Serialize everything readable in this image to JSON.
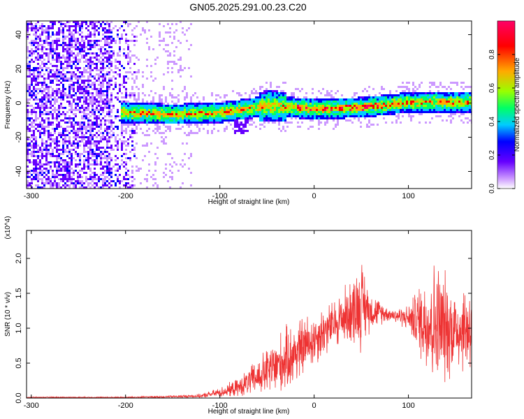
{
  "figure_title": "GN05.2025.291.00.23.C20",
  "chart_data": [
    {
      "type": "heatmap",
      "name": "spectrogram",
      "xlabel": "Height of straight line (km)",
      "ylabel": "Frequency (Hz)",
      "xlim": [
        -305,
        167
      ],
      "ylim": [
        -50,
        48
      ],
      "x_ticks": [
        -300,
        -200,
        -100,
        0,
        100
      ],
      "x_tick_labels": [
        "-300",
        "-200",
        "-100",
        "0",
        "100"
      ],
      "y_ticks": [
        40,
        20,
        0,
        -20,
        -40
      ],
      "y_tick_labels": [
        "40",
        "20",
        "0",
        "-20",
        "-40"
      ],
      "colorbar": {
        "label": "Normalized spectral amplitude",
        "range": [
          0,
          1
        ],
        "ticks": [
          0.0,
          0.2,
          0.4,
          0.6,
          0.8
        ],
        "tick_labels": [
          "0.0",
          "0.2",
          "0.4",
          "0.6",
          "0.8"
        ],
        "colors": [
          "#ffffff",
          "#cc99ff",
          "#6600ff",
          "#0000ff",
          "#00ccff",
          "#00ff66",
          "#99ff00",
          "#ffaa00",
          "#ff0000",
          "#ff0066"
        ]
      },
      "signal_band": {
        "description": "narrow band centered near 0 Hz with broadband noise before ~-190 km",
        "center_track": [
          {
            "x": -200,
            "y": -5
          },
          {
            "x": -150,
            "y": -6
          },
          {
            "x": -100,
            "y": -5
          },
          {
            "x": -50,
            "y": -1
          },
          {
            "x": 0,
            "y": -3
          },
          {
            "x": 50,
            "y": -2
          },
          {
            "x": 100,
            "y": 1
          },
          {
            "x": 167,
            "y": 1
          }
        ]
      }
    },
    {
      "type": "line",
      "name": "snr",
      "xlabel": "Height of straight line (km)",
      "ylabel": "SNR (10 * v/v)",
      "y_multiplier_label": "(x10^4)",
      "xlim": [
        -305,
        167
      ],
      "ylim": [
        0,
        2.4
      ],
      "x_ticks": [
        -300,
        -200,
        -100,
        0,
        100
      ],
      "x_tick_labels": [
        "-300",
        "-200",
        "-100",
        "0",
        "100"
      ],
      "y_ticks": [
        0.0,
        0.5,
        1.0,
        1.5,
        2.0
      ],
      "y_tick_labels": [
        "0.0",
        "0.5",
        "1.0",
        "1.5",
        "2.0"
      ],
      "color": "#ee3333",
      "envelope": {
        "x": [
          -305,
          -200,
          -150,
          -120,
          -100,
          -80,
          -60,
          -40,
          -20,
          0,
          20,
          40,
          50,
          60,
          80,
          100,
          120,
          130,
          140,
          150,
          167
        ],
        "mean": [
          0.01,
          0.01,
          0.02,
          0.03,
          0.08,
          0.15,
          0.3,
          0.45,
          0.65,
          0.85,
          1.05,
          1.25,
          1.35,
          1.25,
          1.2,
          1.15,
          1.1,
          1.05,
          1.0,
          1.0,
          1.0
        ],
        "amplitude": [
          0.01,
          0.01,
          0.02,
          0.03,
          0.08,
          0.15,
          0.3,
          0.5,
          0.55,
          0.45,
          0.4,
          0.55,
          0.75,
          0.3,
          0.1,
          0.2,
          0.9,
          1.1,
          0.9,
          0.7,
          0.8
        ]
      }
    }
  ]
}
